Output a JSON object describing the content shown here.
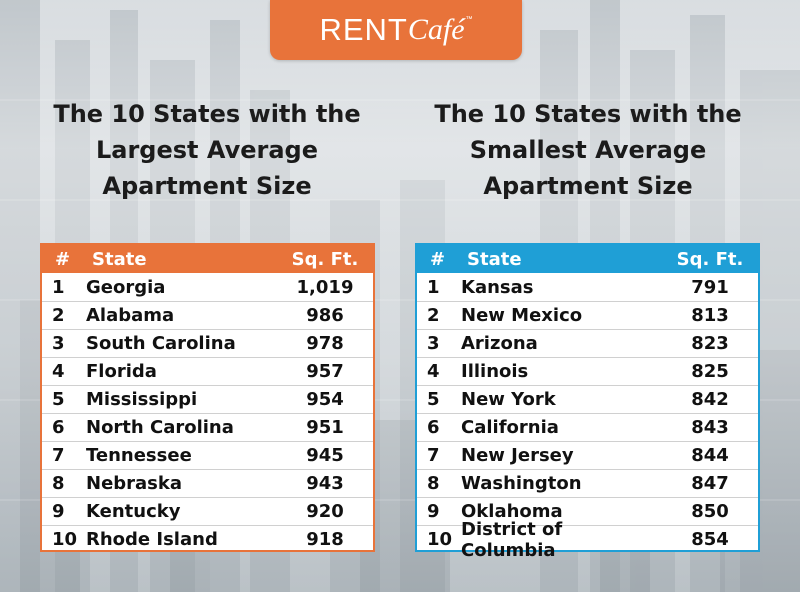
{
  "logo": {
    "rent": "RENT",
    "cafe": "Café",
    "tm": "™"
  },
  "left": {
    "title_lines": [
      "The 10 States with the",
      "Largest Average",
      "Apartment Size"
    ],
    "accent_color": "#e8733a",
    "headers": {
      "rank": "#",
      "state": "State",
      "sqft": "Sq. Ft."
    },
    "rows": [
      {
        "rank": "1",
        "state": "Georgia",
        "sqft": "1,019"
      },
      {
        "rank": "2",
        "state": "Alabama",
        "sqft": "986"
      },
      {
        "rank": "3",
        "state": "South Carolina",
        "sqft": "978"
      },
      {
        "rank": "4",
        "state": "Florida",
        "sqft": "957"
      },
      {
        "rank": "5",
        "state": "Mississippi",
        "sqft": "954"
      },
      {
        "rank": "6",
        "state": "North Carolina",
        "sqft": "951"
      },
      {
        "rank": "7",
        "state": "Tennessee",
        "sqft": "945"
      },
      {
        "rank": "8",
        "state": "Nebraska",
        "sqft": "943"
      },
      {
        "rank": "9",
        "state": "Kentucky",
        "sqft": "920"
      },
      {
        "rank": "10",
        "state": "Rhode Island",
        "sqft": "918"
      }
    ]
  },
  "right": {
    "title_lines": [
      "The 10 States with the",
      "Smallest Average",
      "Apartment Size"
    ],
    "accent_color": "#1f9fd6",
    "headers": {
      "rank": "#",
      "state": "State",
      "sqft": "Sq. Ft."
    },
    "rows": [
      {
        "rank": "1",
        "state": "Kansas",
        "sqft": "791"
      },
      {
        "rank": "2",
        "state": "New Mexico",
        "sqft": "813"
      },
      {
        "rank": "3",
        "state": "Arizona",
        "sqft": "823"
      },
      {
        "rank": "4",
        "state": "Illinois",
        "sqft": "825"
      },
      {
        "rank": "5",
        "state": "New York",
        "sqft": "842"
      },
      {
        "rank": "6",
        "state": "California",
        "sqft": "843"
      },
      {
        "rank": "7",
        "state": "New Jersey",
        "sqft": "844"
      },
      {
        "rank": "8",
        "state": "Washington",
        "sqft": "847"
      },
      {
        "rank": "9",
        "state": "Oklahoma",
        "sqft": "850"
      },
      {
        "rank": "10",
        "state": "District of Columbia",
        "sqft": "854"
      }
    ]
  }
}
